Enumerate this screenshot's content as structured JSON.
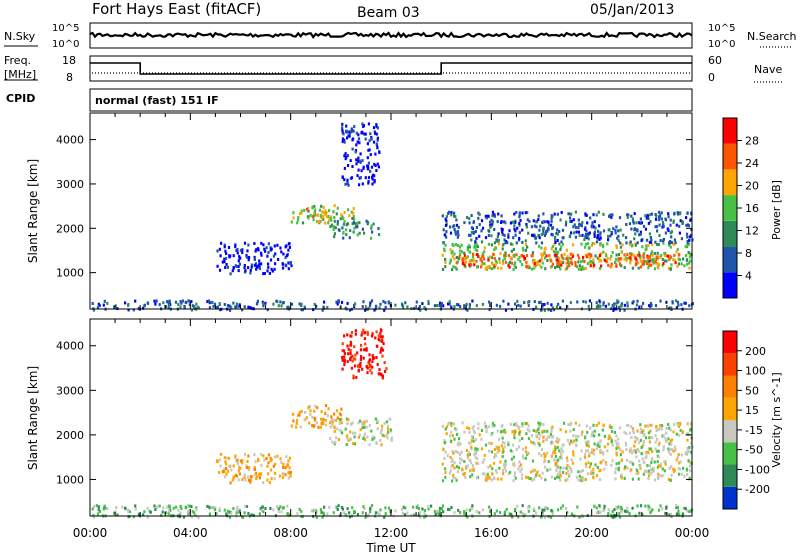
{
  "header": {
    "station": "Fort Hays East (fitACF)",
    "beam": "Beam 03",
    "date": "05/Jan/2013"
  },
  "noise_panel": {
    "left_label": "N.Sky",
    "right_label": "N.Search",
    "left_ticks": [
      "10^5",
      "10^0"
    ],
    "right_ticks": [
      "10^5",
      "10^0"
    ]
  },
  "freq_panel": {
    "left_label_1": "Freq.",
    "left_label_2": "[MHz]",
    "right_label": "Nave",
    "left_ticks": [
      "18",
      "8"
    ],
    "right_ticks": [
      "60",
      "0"
    ],
    "freq_segments": [
      {
        "from_hour": 0,
        "to_hour": 2,
        "value": "high"
      },
      {
        "from_hour": 2,
        "to_hour": 14,
        "value": "low"
      },
      {
        "from_hour": 14,
        "to_hour": 24,
        "value": "high"
      }
    ]
  },
  "cpid": {
    "label": "CPID",
    "mode": "normal (fast) 151 IF"
  },
  "x_axis": {
    "title": "Time UT",
    "ticks": [
      "00:00",
      "04:00",
      "08:00",
      "12:00",
      "16:00",
      "20:00",
      "00:00"
    ],
    "range_hours": [
      0,
      24
    ]
  },
  "chart_data": [
    {
      "type": "heatmap",
      "quantity": "Power",
      "ylabel": "Slant Range [km]",
      "yticks": [
        "4000",
        "3000",
        "2000",
        "1000"
      ],
      "ylim_km": [
        180,
        4600
      ],
      "colorbar": {
        "label": "Power [dB]",
        "ticks": [
          "28",
          "24",
          "20",
          "16",
          "12",
          "8",
          "4"
        ],
        "colors": [
          "#0000ff",
          "#1f55a8",
          "#2e8b57",
          "#47c047",
          "#ffa500",
          "#ff5500",
          "#ff0000"
        ]
      },
      "regions": [
        {
          "t0": 8.0,
          "t1": 10.5,
          "r0": 2150,
          "r1": 2550,
          "level": 3
        },
        {
          "t0": 8.6,
          "t1": 9.4,
          "r0": 2250,
          "r1": 2500,
          "level": 4
        },
        {
          "t0": 9.5,
          "t1": 11.5,
          "r0": 1800,
          "r1": 2200,
          "level": 2
        },
        {
          "t0": 5.0,
          "t1": 8.0,
          "r0": 1000,
          "r1": 1700,
          "level": 0
        },
        {
          "t0": 14.0,
          "t1": 24.0,
          "r0": 1100,
          "r1": 1700,
          "level": 3
        },
        {
          "t0": 14.5,
          "t1": 23.5,
          "r0": 1150,
          "r1": 1450,
          "level": 5
        },
        {
          "t0": 14.0,
          "t1": 24.0,
          "r0": 1700,
          "r1": 2400,
          "level": 1
        },
        {
          "t0": 10.0,
          "t1": 11.5,
          "r0": 3000,
          "r1": 4400,
          "level": 0
        },
        {
          "t0": 0.0,
          "t1": 24.0,
          "r0": 180,
          "r1": 400,
          "level": 1
        }
      ]
    },
    {
      "type": "heatmap",
      "quantity": "Velocity",
      "ylabel": "Slant Range [km]",
      "yticks": [
        "4000",
        "3000",
        "2000",
        "1000"
      ],
      "ylim_km": [
        180,
        4600
      ],
      "colorbar": {
        "label": "Velocity [m s^-1]",
        "ticks": [
          "200",
          "100",
          "50",
          "15",
          "-15",
          "-50",
          "-100",
          "-200"
        ],
        "colors": [
          "#0033cc",
          "#2e8b57",
          "#47c047",
          "#c8c8c0",
          "#ffa500",
          "#ff8000",
          "#ff4000",
          "#ff0000"
        ]
      },
      "regions": [
        {
          "t0": 8.0,
          "t1": 10.0,
          "r0": 2200,
          "r1": 2700,
          "level": 4
        },
        {
          "t0": 9.5,
          "t1": 12.0,
          "r0": 1800,
          "r1": 2400,
          "level": 3
        },
        {
          "t0": 5.0,
          "t1": 8.0,
          "r0": 950,
          "r1": 1600,
          "level": 4
        },
        {
          "t0": 14.0,
          "t1": 24.0,
          "r0": 1000,
          "r1": 1700,
          "level": 3
        },
        {
          "t0": 14.0,
          "t1": 24.0,
          "r0": 1700,
          "r1": 2300,
          "level": 3
        },
        {
          "t0": 10.0,
          "t1": 11.8,
          "r0": 3300,
          "r1": 4400,
          "level": 7
        },
        {
          "t0": 0.0,
          "t1": 24.0,
          "r0": 180,
          "r1": 450,
          "level": 2
        }
      ]
    }
  ]
}
